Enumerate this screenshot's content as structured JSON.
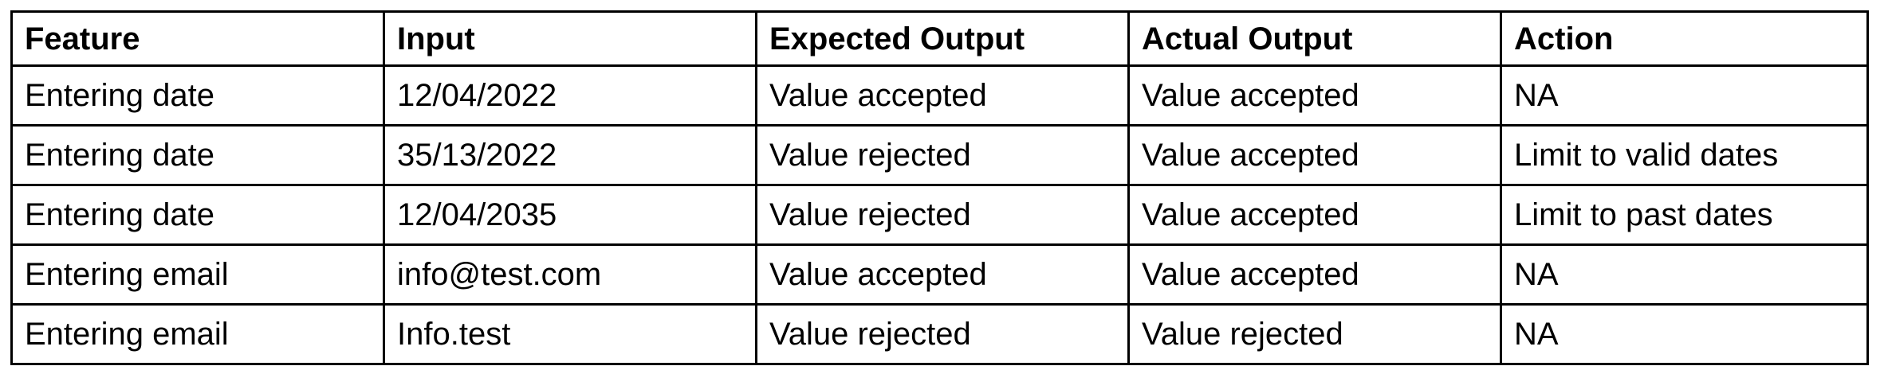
{
  "table": {
    "headers": [
      "Feature",
      "Input",
      "Expected Output",
      "Actual Output",
      "Action"
    ],
    "rows": [
      [
        "Entering date",
        "12/04/2022",
        "Value accepted",
        "Value accepted",
        "NA"
      ],
      [
        "Entering date",
        "35/13/2022",
        "Value rejected",
        "Value accepted",
        "Limit to valid dates"
      ],
      [
        "Entering date",
        "12/04/2035",
        "Value rejected",
        "Value accepted",
        "Limit to past dates"
      ],
      [
        "Entering email",
        "info@test.com",
        "Value accepted",
        "Value accepted",
        "NA"
      ],
      [
        "Entering email",
        "Info.test",
        "Value rejected",
        "Value rejected",
        "NA"
      ]
    ]
  }
}
